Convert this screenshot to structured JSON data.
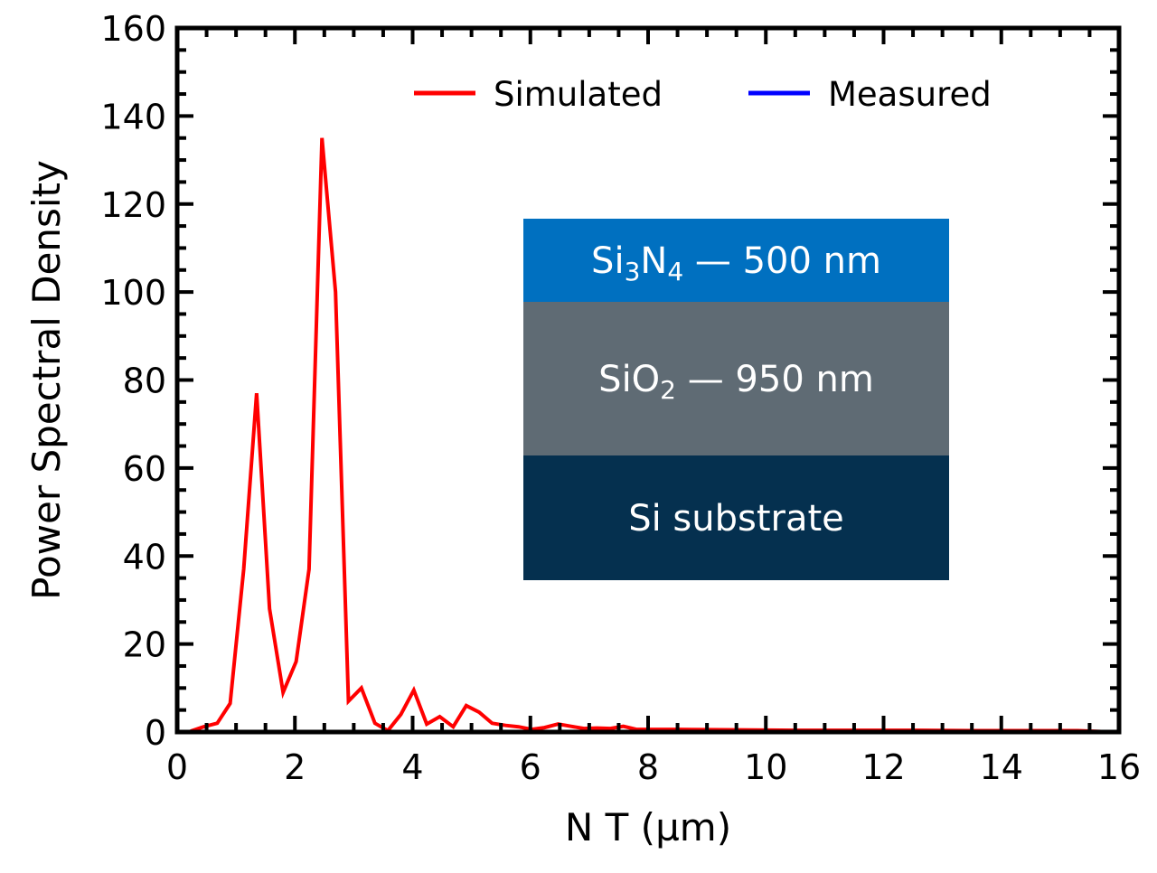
{
  "chart_data": {
    "type": "line",
    "title": "",
    "xlabel": "N T (µm)",
    "ylabel": "Power Spectral Density",
    "xlim": [
      0,
      16
    ],
    "ylim": [
      0,
      160
    ],
    "xticks": [
      0,
      2,
      4,
      6,
      8,
      10,
      12,
      14,
      16
    ],
    "yticks": [
      0,
      20,
      40,
      60,
      80,
      100,
      120,
      140,
      160
    ],
    "xtick_labels": [
      "0",
      "2",
      "4",
      "6",
      "8",
      "10",
      "12",
      "14",
      "16"
    ],
    "ytick_labels": [
      "0",
      "20",
      "40",
      "60",
      "80",
      "100",
      "120",
      "140",
      "160"
    ],
    "x_minor_step": 0.5,
    "y_minor_step": 5,
    "grid": false,
    "legend_position": "top-right",
    "series": [
      {
        "name": "Simulated",
        "color": "#ff0000",
        "x": [
          0.23,
          0.45,
          0.68,
          0.9,
          1.13,
          1.35,
          1.57,
          1.8,
          2.02,
          2.24,
          2.46,
          2.69,
          2.91,
          3.13,
          3.36,
          3.58,
          3.8,
          4.02,
          4.24,
          4.46,
          4.69,
          4.91,
          5.13,
          5.35,
          5.58,
          5.8,
          6.02,
          6.24,
          6.47,
          6.69,
          6.91,
          7.13,
          7.36,
          7.58,
          7.8,
          8.5,
          9.5,
          10.5,
          11.5,
          12.5,
          13.5,
          14.5,
          15.3,
          15.7
        ],
        "y": [
          0.2,
          1.2,
          2.0,
          6.5,
          37,
          77,
          28,
          9,
          16,
          37,
          135,
          100,
          7,
          10,
          2,
          0.3,
          4,
          9.5,
          1.8,
          3.5,
          1.2,
          6,
          4.5,
          2,
          1.5,
          1.2,
          0.6,
          1.0,
          1.8,
          1.3,
          0.8,
          0.9,
          0.8,
          1.3,
          0.6,
          0.6,
          0.5,
          0.4,
          0.4,
          0.4,
          0.3,
          0.3,
          0.3,
          0.1
        ]
      },
      {
        "name": "Measured",
        "color": "#0000ff",
        "x": [],
        "y": []
      }
    ],
    "inset": {
      "layers": [
        {
          "label_parts": [
            [
              "Si",
              ""
            ],
            [
              "3",
              "sub"
            ],
            [
              "N",
              ""
            ],
            [
              "4",
              "sub"
            ],
            [
              " — 500 nm",
              ""
            ]
          ],
          "color": "#0070c0"
        },
        {
          "label_parts": [
            [
              "SiO",
              ""
            ],
            [
              "2",
              "sub"
            ],
            [
              " — 950 nm",
              ""
            ]
          ],
          "color": "#5f6b74"
        },
        {
          "label_parts": [
            [
              "Si substrate",
              ""
            ]
          ],
          "color": "#05304f"
        }
      ]
    }
  }
}
